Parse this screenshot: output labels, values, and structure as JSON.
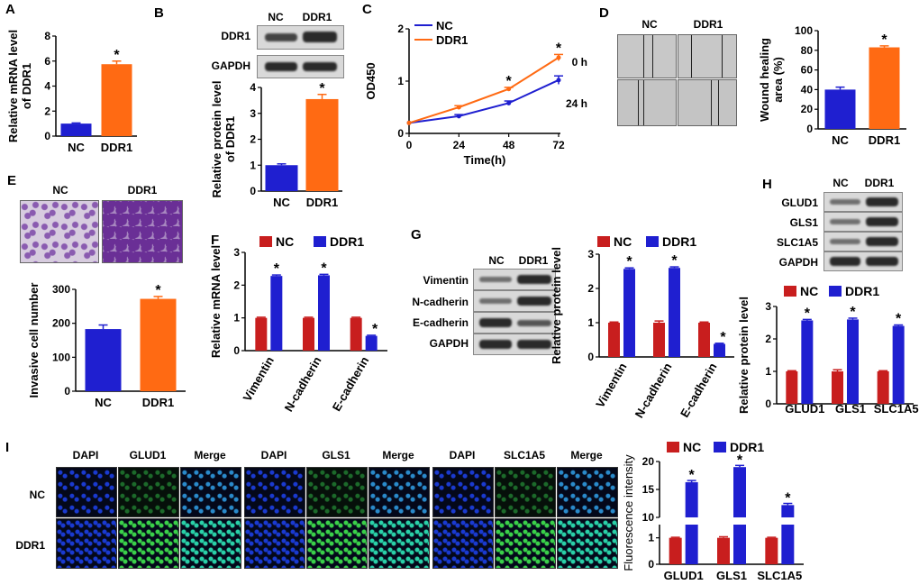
{
  "colors": {
    "nc_blue": "#1f1fd0",
    "ddr1_orange": "#ff6a13",
    "nc_red": "#c81e1e",
    "ddr1_blue": "#1f1fd0",
    "blot_bg": "#d9d9d9",
    "band": "#2a2a2a",
    "fluor_nc": "#0a1a40",
    "fluor_ddr1": "#1a6b2a"
  },
  "panel_letters": {
    "A": "A",
    "B": "B",
    "C": "C",
    "D": "D",
    "E": "E",
    "F": "F",
    "G": "G",
    "H": "H",
    "I": "I"
  },
  "common": {
    "nc": "NC",
    "ddr1": "DDR1",
    "star": "*"
  },
  "blot": {
    "B": {
      "top": [
        "NC",
        "DDR1"
      ],
      "rows": [
        "DDR1",
        "GAPDH"
      ]
    },
    "G": {
      "top": [
        "NC",
        "DDR1"
      ],
      "rows": [
        "Vimentin",
        "N-cadherin",
        "E-cadherin",
        "GAPDH"
      ]
    },
    "H": {
      "top": [
        "NC",
        "DDR1"
      ],
      "rows": [
        "GLUD1",
        "GLS1",
        "SLC1A5",
        "GAPDH"
      ]
    }
  },
  "wound": {
    "cols": [
      "NC",
      "DDR1"
    ],
    "rows": [
      "0 h",
      "24 h"
    ]
  },
  "invasion": {
    "cols": [
      "NC",
      "DDR1"
    ]
  },
  "fluor": {
    "groups": [
      {
        "cols": [
          "DAPI",
          "GLUD1",
          "Merge"
        ]
      },
      {
        "cols": [
          "DAPI",
          "GLS1",
          "Merge"
        ]
      },
      {
        "cols": [
          "DAPI",
          "SLC1A5",
          "Merge"
        ]
      }
    ],
    "rows": [
      "NC",
      "DDR1"
    ]
  },
  "chart_data": [
    {
      "id": "A",
      "type": "bar",
      "categories": [
        "NC",
        "DDR1"
      ],
      "values": [
        1.0,
        5.75
      ],
      "errors": [
        0.05,
        0.25
      ],
      "sig": [
        false,
        true
      ],
      "ylabel": "Relative mRNA level of DDR1",
      "ylim": [
        0,
        8
      ],
      "yticks": [
        "0",
        "2",
        "4",
        "6",
        "8"
      ]
    },
    {
      "id": "B",
      "type": "bar",
      "categories": [
        "NC",
        "DDR1"
      ],
      "values": [
        1.0,
        3.55
      ],
      "errors": [
        0.05,
        0.18
      ],
      "sig": [
        false,
        true
      ],
      "ylabel": "Relative protein level of DDR1",
      "ylim": [
        0,
        4
      ],
      "yticks": [
        "0",
        "1",
        "2",
        "3",
        "4"
      ]
    },
    {
      "id": "C",
      "type": "line",
      "x": [
        0,
        24,
        48,
        72
      ],
      "series": [
        {
          "name": "NC",
          "values": [
            0.2,
            0.33,
            0.58,
            1.02
          ],
          "errors": [
            0.02,
            0.03,
            0.04,
            0.08
          ]
        },
        {
          "name": "DDR1",
          "values": [
            0.2,
            0.5,
            0.85,
            1.45
          ],
          "errors": [
            0.02,
            0.03,
            0.03,
            0.06
          ]
        }
      ],
      "sig": [
        false,
        false,
        true,
        true
      ],
      "xlabel": "Time(h)",
      "ylabel": "OD450",
      "xlim": [
        0,
        72
      ],
      "ylim": [
        0,
        2
      ],
      "xticks": [
        "0",
        "24",
        "48",
        "72"
      ],
      "yticks": [
        "0",
        "1",
        "2"
      ]
    },
    {
      "id": "D",
      "type": "bar",
      "categories": [
        "NC",
        "DDR1"
      ],
      "values": [
        40,
        83
      ],
      "errors": [
        2.5,
        1.5
      ],
      "sig": [
        false,
        true
      ],
      "ylabel": "Wound healing area (%)",
      "ylim": [
        0,
        100
      ],
      "yticks": [
        "0",
        "20",
        "40",
        "60",
        "80",
        "100"
      ]
    },
    {
      "id": "E",
      "type": "bar",
      "categories": [
        "NC",
        "DDR1"
      ],
      "values": [
        183,
        272
      ],
      "errors": [
        12,
        7
      ],
      "sig": [
        false,
        true
      ],
      "ylabel": "Invasive cell number",
      "ylim": [
        0,
        300
      ],
      "yticks": [
        "0",
        "100",
        "200",
        "300"
      ]
    },
    {
      "id": "F",
      "type": "bar",
      "categories": [
        "Vimentin",
        "N-cadherin",
        "E-cadherin"
      ],
      "series": [
        {
          "name": "NC",
          "values": [
            1.0,
            1.0,
            1.0
          ],
          "errors": [
            0.02,
            0.02,
            0.02
          ]
        },
        {
          "name": "DDR1",
          "values": [
            2.28,
            2.3,
            0.45
          ],
          "errors": [
            0.03,
            0.03,
            0.02
          ]
        }
      ],
      "sig": [
        true,
        true,
        true
      ],
      "ylabel": "Relative mRNA level",
      "ylim": [
        0,
        3
      ],
      "yticks": [
        "0",
        "1",
        "2",
        "3"
      ]
    },
    {
      "id": "G",
      "type": "bar",
      "categories": [
        "Vimentin",
        "N-cadherin",
        "E-cadherin"
      ],
      "series": [
        {
          "name": "NC",
          "values": [
            1.0,
            1.0,
            1.0
          ],
          "errors": [
            0.02,
            0.05,
            0.02
          ]
        },
        {
          "name": "DDR1",
          "values": [
            2.57,
            2.6,
            0.38
          ],
          "errors": [
            0.03,
            0.03,
            0.02
          ]
        }
      ],
      "sig": [
        true,
        true,
        true
      ],
      "ylabel": "Relative protein level",
      "ylim": [
        0,
        3
      ],
      "yticks": [
        "0",
        "1",
        "2",
        "3"
      ]
    },
    {
      "id": "H",
      "type": "bar",
      "categories": [
        "GLUD1",
        "GLS1",
        "SLC1A5"
      ],
      "series": [
        {
          "name": "NC",
          "values": [
            1.0,
            1.0,
            1.0
          ],
          "errors": [
            0.02,
            0.05,
            0.02
          ]
        },
        {
          "name": "DDR1",
          "values": [
            2.57,
            2.6,
            2.4
          ],
          "errors": [
            0.03,
            0.04,
            0.03
          ]
        }
      ],
      "sig": [
        true,
        true,
        true
      ],
      "ylabel": "Relative protein level",
      "ylim": [
        0,
        3
      ],
      "yticks": [
        "0",
        "1",
        "2",
        "3"
      ]
    },
    {
      "id": "I",
      "type": "bar",
      "categories": [
        "GLUD1",
        "GLS1",
        "SLC1A5"
      ],
      "series": [
        {
          "name": "NC",
          "values": [
            1.0,
            1.0,
            1.0
          ],
          "errors": [
            0.02,
            0.04,
            0.02
          ]
        },
        {
          "name": "DDR1",
          "values": [
            16.3,
            19.0,
            12.2
          ],
          "errors": [
            0.3,
            0.3,
            0.3
          ]
        }
      ],
      "sig": [
        true,
        true,
        true
      ],
      "ylabel": "Fluorescence intensity",
      "axis_break": true,
      "upper_ylim": [
        10,
        20
      ],
      "lower_ylim": [
        0,
        1.5
      ],
      "yticks_upper": [
        "10",
        "15",
        "20"
      ],
      "yticks_lower": [
        "0",
        "1"
      ]
    }
  ]
}
